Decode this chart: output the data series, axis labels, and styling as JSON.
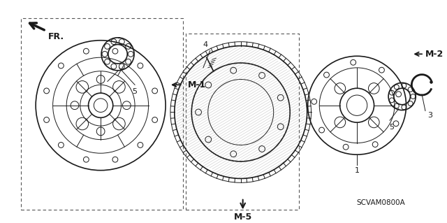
{
  "bg_color": "#ffffff",
  "line_color": "#1a1a1a",
  "title": "",
  "part_code": "SCVAM0800A",
  "labels": {
    "M1": "M-1",
    "M2": "M-2",
    "M5": "M-5",
    "FR": "FR.",
    "n1": "1",
    "n3": "3",
    "n4": "4",
    "n5a": "5",
    "n5b": "5"
  },
  "fig_width": 6.4,
  "fig_height": 3.19,
  "dpi": 100
}
